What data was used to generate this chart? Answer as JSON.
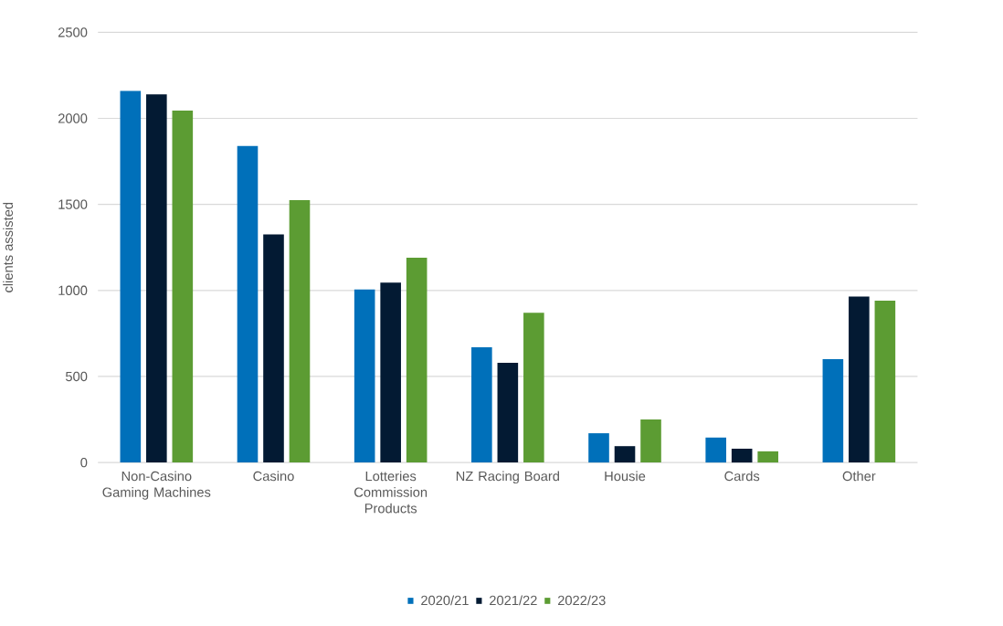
{
  "chart_data": {
    "type": "bar",
    "ylabel": "clients assisted",
    "categories": [
      "Non-Casino Gaming Machines",
      "Casino",
      "Lotteries Commission Products",
      "NZ Racing Board",
      "Housie",
      "Cards",
      "Other"
    ],
    "series": [
      {
        "name": "2020/21",
        "color": "#0070ba",
        "values": [
          2160,
          1840,
          1005,
          670,
          170,
          145,
          600
        ]
      },
      {
        "name": "2021/22",
        "color": "#031a33",
        "values": [
          2140,
          1325,
          1045,
          580,
          95,
          80,
          965
        ]
      },
      {
        "name": "2022/23",
        "color": "#5c9c33",
        "values": [
          2045,
          1525,
          1190,
          870,
          250,
          65,
          940
        ]
      }
    ],
    "ylim": [
      0,
      2500
    ],
    "yticks": [
      0,
      500,
      1000,
      1500,
      2000,
      2500
    ],
    "grid": "y",
    "legend": "bottom"
  }
}
